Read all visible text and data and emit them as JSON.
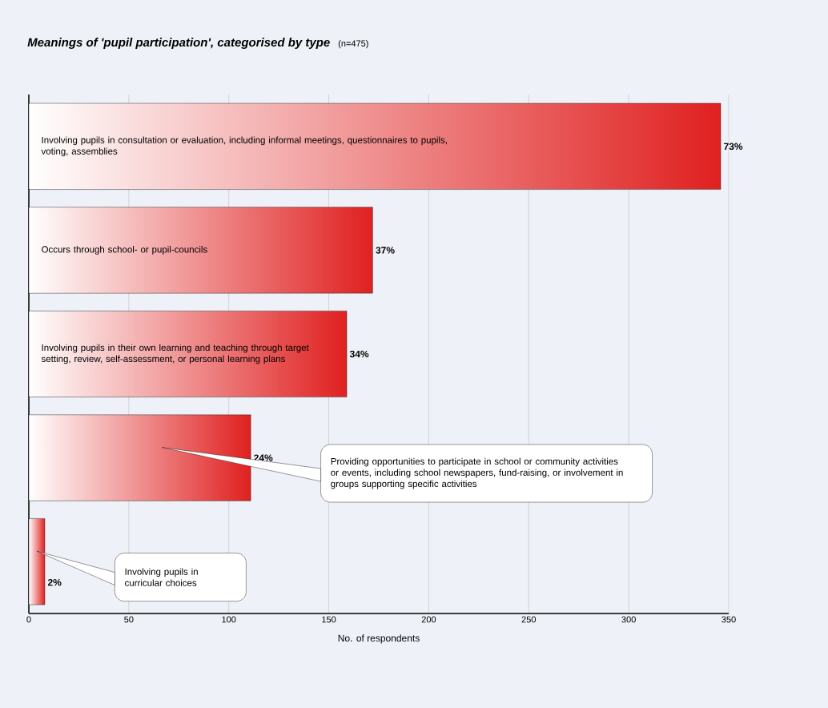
{
  "chart_data": {
    "type": "bar",
    "orientation": "horizontal",
    "title": "Meanings of 'pupil participation', categorised by type",
    "subtitle": "(n=475)",
    "xlabel": "No. of respondents",
    "categories": [
      "Involving pupils in consultation or evaluation, including informal meetings, questionnaires to pupils, voting, assemblies",
      "Occurs through school- or pupil-councils",
      "Involving pupils in their own learning and teaching through target setting, review, self-assessment, or personal learning plans",
      "Providing opportunities to participate in school or community activities or events, including school newspapers, fund-raising, or involvement in groups supporting specific activities",
      "Involving pupils in curricular choices"
    ],
    "values": [
      346,
      172,
      159,
      111,
      8
    ],
    "annotations": [
      {
        "text": "73%",
        "x": 346
      },
      {
        "text": "37%",
        "x": 172
      },
      {
        "text": "34%",
        "x": 159
      },
      {
        "text": "24%",
        "x": 111
      },
      {
        "text": "2%",
        "x": 8
      }
    ],
    "color": "#e02020",
    "xlim": [
      0,
      350
    ],
    "xticks": [
      0,
      50,
      100,
      150,
      200,
      250,
      300,
      350
    ],
    "grid": "x"
  }
}
